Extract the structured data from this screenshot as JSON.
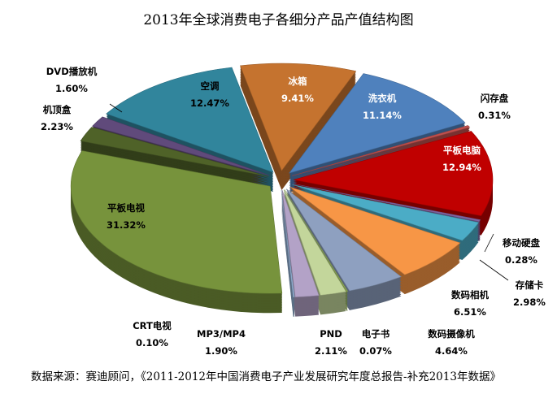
{
  "chart_data": {
    "type": "pie",
    "style": "3d-exploded",
    "title": "2013年全球消费电子各细分产品产值结构图",
    "slices": [
      {
        "label": "冰箱",
        "value": 9.41,
        "display": "9.41%",
        "color": "#C5732F"
      },
      {
        "label": "洗衣机",
        "value": 11.14,
        "display": "11.14%",
        "color": "#4F81BD"
      },
      {
        "label": "闪存盘",
        "value": 0.31,
        "display": "0.31%",
        "color": "#C0504D"
      },
      {
        "label": "平板电脑",
        "value": 12.94,
        "display": "12.94%",
        "color": "#C00000"
      },
      {
        "label": "移动硬盘",
        "value": 0.28,
        "display": "0.28%",
        "color": "#8064A2"
      },
      {
        "label": "存储卡",
        "value": 2.98,
        "display": "2.98%",
        "color": "#4BACC6"
      },
      {
        "label": "数码相机",
        "value": 6.51,
        "display": "6.51%",
        "color": "#F79646"
      },
      {
        "label": "数码摄像机",
        "value": 4.64,
        "display": "4.64%",
        "color": "#8EA0C0"
      },
      {
        "label": "电子书",
        "value": 0.07,
        "display": "0.07%",
        "color": "#9BBB59"
      },
      {
        "label": "PND",
        "value": 2.11,
        "display": "2.11%",
        "color": "#C3D69B"
      },
      {
        "label": "MP3/MP4",
        "value": 1.9,
        "display": "1.90%",
        "color": "#B3A2C7"
      },
      {
        "label": "CRT电视",
        "value": 0.1,
        "display": "0.10%",
        "color": "#95B3D7"
      },
      {
        "label": "平板电视",
        "value": 31.32,
        "display": "31.32%",
        "color": "#77933C"
      },
      {
        "label": "机顶盒",
        "value": 2.23,
        "display": "2.23%",
        "color": "#4F6228"
      },
      {
        "label": "DVD播放机",
        "value": 1.6,
        "display": "1.60%",
        "color": "#604A7B"
      },
      {
        "label": "空调",
        "value": 12.47,
        "display": "12.47%",
        "color": "#31859C"
      }
    ]
  },
  "source": "数据来源：赛迪顾问，《2011-2012年中国消费电子产业发展研究年度总报告-补充2013年数据》"
}
